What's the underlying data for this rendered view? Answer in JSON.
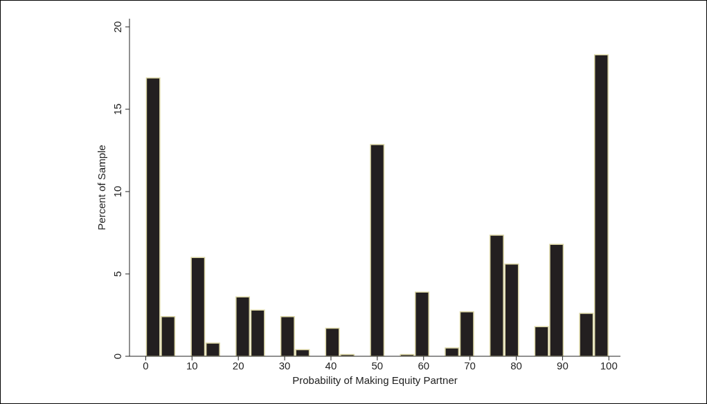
{
  "chart_data": {
    "type": "histogram",
    "xlabel": "Probability of Making Equity Partner",
    "ylabel": "Percent of Sample",
    "bins": [
      0,
      3.23,
      6.45,
      9.68,
      12.9,
      16.13,
      19.35,
      22.58,
      25.81,
      29.03,
      32.26,
      35.48,
      38.71,
      41.94,
      45.16,
      48.39,
      51.61,
      54.84,
      58.06,
      61.29,
      64.52,
      67.74,
      70.97,
      74.19,
      77.42,
      80.65,
      83.87,
      87.1,
      90.32,
      93.55,
      96.77,
      100
    ],
    "values": [
      16.9,
      2.4,
      0,
      6.0,
      0.8,
      0,
      3.6,
      2.8,
      0,
      2.4,
      0.4,
      0,
      1.7,
      0.1,
      0,
      12.85,
      0,
      0.1,
      3.9,
      0,
      0.5,
      2.7,
      0,
      7.35,
      5.6,
      0,
      1.8,
      6.8,
      0,
      2.6,
      18.3
    ],
    "color": "#231f20",
    "xlim": [
      -3.5,
      102.5
    ],
    "xticks": [
      0,
      10,
      20,
      30,
      40,
      50,
      60,
      70,
      80,
      90,
      100
    ],
    "ylim": [
      0,
      20.5
    ],
    "yticks": [
      0,
      5,
      10,
      15,
      20
    ],
    "grid": false
  }
}
